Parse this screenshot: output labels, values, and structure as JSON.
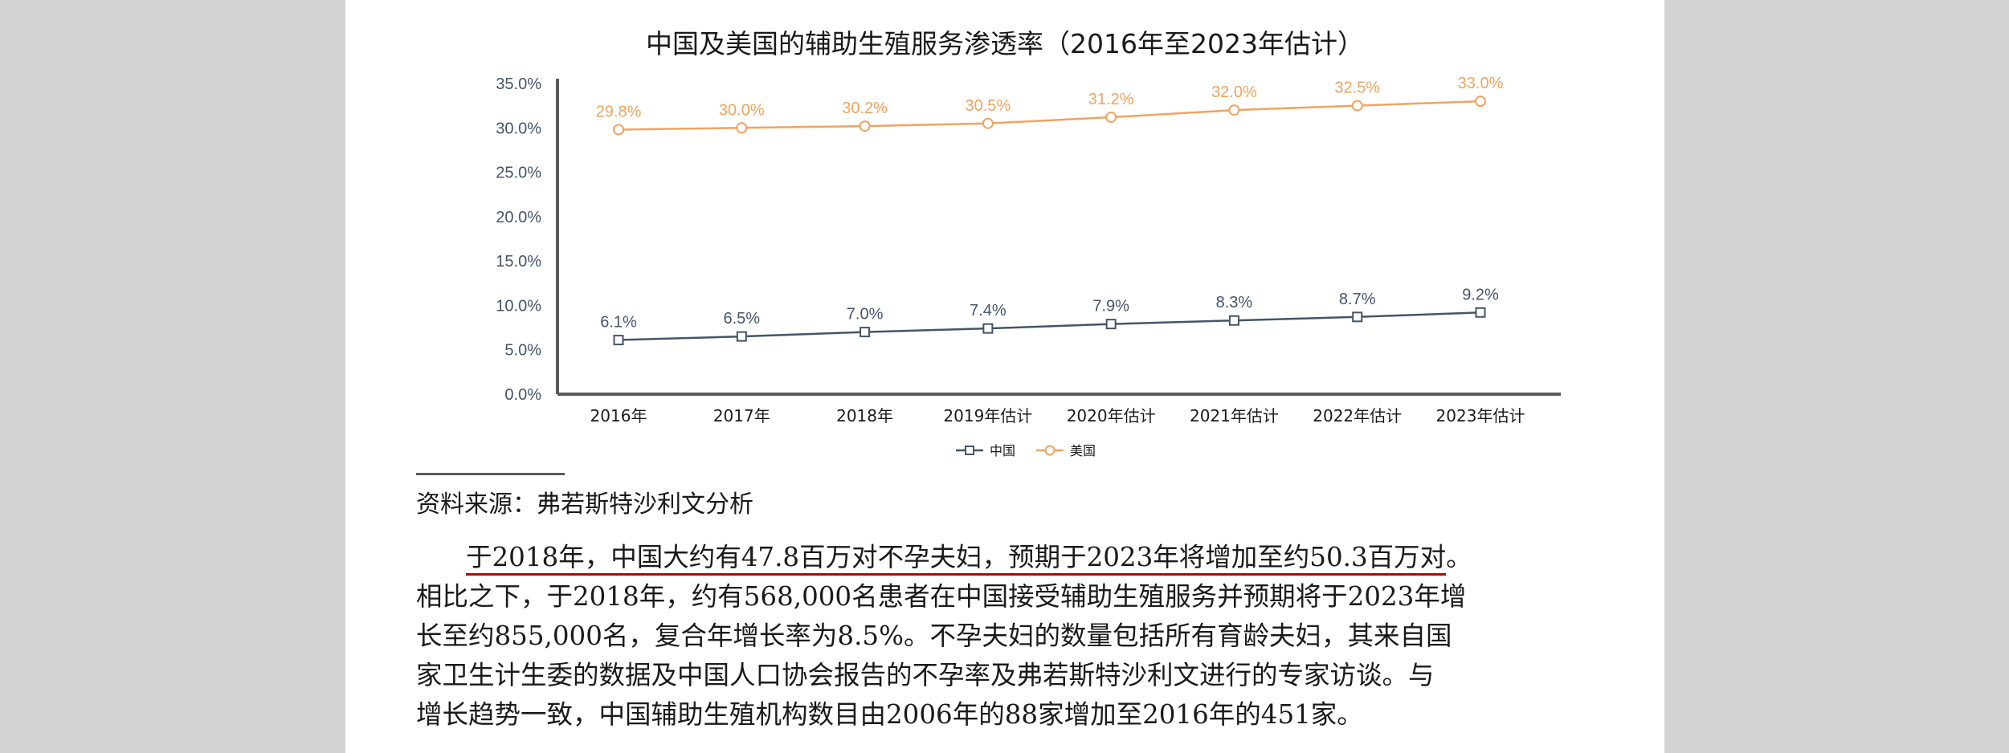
{
  "chart_data": {
    "type": "line",
    "title": "中国及美国的辅助生殖服务渗透率（2016年至2023年估计）",
    "categories": [
      "2016年",
      "2017年",
      "2018年",
      "2019年估计",
      "2020年估计",
      "2021年估计",
      "2022年估计",
      "2023年估计"
    ],
    "y_ticks": [
      "0.0%",
      "5.0%",
      "10.0%",
      "15.0%",
      "20.0%",
      "25.0%",
      "30.0%",
      "35.0%"
    ],
    "ylim": [
      0,
      35
    ],
    "grid": false,
    "legend_position": "bottom-center",
    "series": [
      {
        "name": "中国",
        "marker": "square",
        "color": "#44546a",
        "values": [
          6.1,
          6.5,
          7.0,
          7.4,
          7.9,
          8.3,
          8.7,
          9.2
        ],
        "labels": [
          "6.1%",
          "6.5%",
          "7.0%",
          "7.4%",
          "7.9%",
          "8.3%",
          "8.7%",
          "9.2%"
        ]
      },
      {
        "name": "美国",
        "marker": "circle",
        "color": "#f0a35e",
        "values": [
          29.8,
          30.0,
          30.2,
          30.5,
          31.2,
          32.0,
          32.5,
          33.0
        ],
        "labels": [
          "29.8%",
          "30.0%",
          "30.2%",
          "30.5%",
          "31.2%",
          "32.0%",
          "32.5%",
          "33.0%"
        ]
      }
    ]
  },
  "source": "资料来源：弗若斯特沙利文分析",
  "paragraph": {
    "underlined": "于2018年，中国大约有47.8百万对不孕夫妇，预期于2023年将增加至约50.3百万对",
    "first_tail": "。",
    "lines": [
      "相比之下，于2018年，约有568,000名患者在中国接受辅助生殖服务并预期将于2023年增",
      "长至约855,000名，复合年增长率为8.5%。不孕夫妇的数量包括所有育龄夫妇，其来自国",
      "家卫生计生委的数据及中国人口协会报告的不孕率及弗若斯特沙利文进行的专家访谈。与",
      "增长趋势一致，中国辅助生殖机构数目由2006年的88家增加至2016年的451家。"
    ]
  }
}
